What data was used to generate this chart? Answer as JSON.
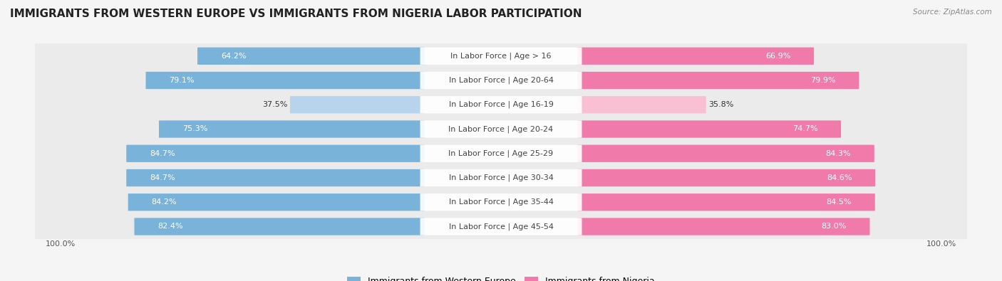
{
  "title": "IMMIGRANTS FROM WESTERN EUROPE VS IMMIGRANTS FROM NIGERIA LABOR PARTICIPATION",
  "source": "Source: ZipAtlas.com",
  "categories": [
    "In Labor Force | Age > 16",
    "In Labor Force | Age 20-64",
    "In Labor Force | Age 16-19",
    "In Labor Force | Age 20-24",
    "In Labor Force | Age 25-29",
    "In Labor Force | Age 30-34",
    "In Labor Force | Age 35-44",
    "In Labor Force | Age 45-54"
  ],
  "western_europe": [
    64.2,
    79.1,
    37.5,
    75.3,
    84.7,
    84.7,
    84.2,
    82.4
  ],
  "nigeria": [
    66.9,
    79.9,
    35.8,
    74.7,
    84.3,
    84.6,
    84.5,
    83.0
  ],
  "color_western": "#7ab3d9",
  "color_nigeria": "#f07aaa",
  "color_western_light": "#b8d4ec",
  "color_nigeria_light": "#f9c0d4",
  "row_bg_color": "#ebebeb",
  "bg_color": "#f5f5f5",
  "title_fontsize": 11,
  "label_fontsize": 8,
  "value_fontsize": 8,
  "legend_fontsize": 9,
  "x_label": "100.0%"
}
